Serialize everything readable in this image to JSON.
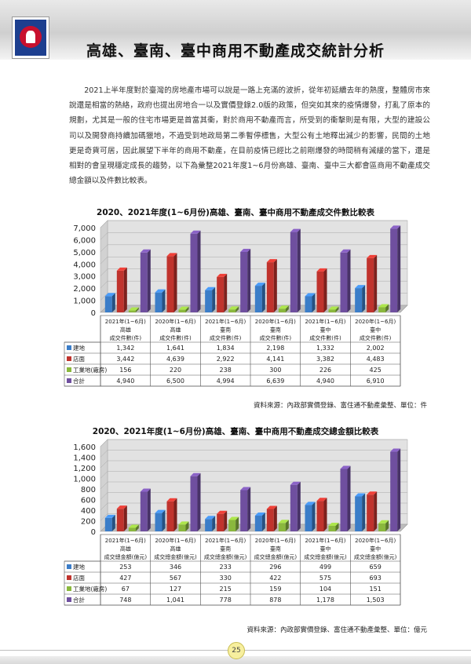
{
  "page": {
    "title": "高雄、臺南、臺中商用不動產成交統計分析",
    "paragraph": "2021上半年度對於臺灣的房地產市場可以說是一路上充滿的波折，從年初延續去年的熱度，整體房市來說還是相當的熱絡，政府也提出房地合一以及實價登錄2.0版的政策，但突如其來的疫情爆發，打亂了原本的規劃，尤其是一般的住宅市場更是首當其衝，對於商用不動產而言，所受到的衝擊則是有限，大型的建設公司以及開發商持續加碼獵地，不過受到地政局第二季暫停標售，大型公有土地釋出減少的影響，民間的土地更是奇貨可居，因此展望下半年的商用不動產，在目前疫情已經比之前剛爆發的時間稍有減緩的當下，還是相對的會呈現穩定成長的趨勢，以下為彙整2021年度1~6月份高雄、臺南、臺中三大都會區商用不動產成交總金額以及件數比較表。",
    "page_number": "25"
  },
  "chart_data": [
    {
      "type": "bar",
      "title": "2020、2021年度(1~6月份)高雄、臺南、臺中商用不動產成交件數比較表",
      "categories": [
        [
          "2021年(1~6月)",
          "高雄",
          "成交件數(件)"
        ],
        [
          "2020年(1~6月)",
          "高雄",
          "成交件數(件)"
        ],
        [
          "2021年(1~6月)",
          "臺南",
          "成交件數(件)"
        ],
        [
          "2020年(1~6月)",
          "臺南",
          "成交件數(件)"
        ],
        [
          "2021年(1~6月)",
          "臺中",
          "成交件數(件)"
        ],
        [
          "2020年(1~6月)",
          "臺中",
          "成交件數(件)"
        ]
      ],
      "series": [
        {
          "name": "建地",
          "color": "#3b7dc8",
          "values": [
            1342,
            1641,
            1834,
            2198,
            1332,
            2002
          ],
          "labels": [
            "1,342",
            "1,641",
            "1,834",
            "2,198",
            "1,332",
            "2,002"
          ]
        },
        {
          "name": "店面",
          "color": "#c0332d",
          "values": [
            3442,
            4639,
            2922,
            4141,
            3382,
            4483
          ],
          "labels": [
            "3,442",
            "4,639",
            "2,922",
            "4,141",
            "3,382",
            "4,483"
          ]
        },
        {
          "name": "工業地(廠房)",
          "color": "#8ab83d",
          "values": [
            156,
            220,
            238,
            300,
            226,
            425
          ],
          "labels": [
            "156",
            "220",
            "238",
            "300",
            "226",
            "425"
          ]
        },
        {
          "name": "合計",
          "color": "#6f4f9f",
          "values": [
            4940,
            6500,
            4994,
            6639,
            4940,
            6910
          ],
          "labels": [
            "4,940",
            "6,500",
            "4,994",
            "6,639",
            "4,940",
            "6,910"
          ]
        }
      ],
      "yticks": [
        "0",
        "1,000",
        "2,000",
        "3,000",
        "4,000",
        "5,000",
        "6,000",
        "7,000"
      ],
      "ylim": [
        0,
        7000
      ],
      "source": "資料來源：內政部實價登錄、富住通不動產彙整、單位：件"
    },
    {
      "type": "bar",
      "title": "2020、2021年度(1~6月份)高雄、臺南、臺中商用不動產成交總金額比較表",
      "categories": [
        [
          "2021年(1~6月)",
          "高雄",
          "成交總金額(億元)"
        ],
        [
          "2020年(1~6月)",
          "高雄",
          "成交總金額(億元)"
        ],
        [
          "2021年(1~6月)",
          "臺南",
          "成交總金額(億元)"
        ],
        [
          "2020年(1~6月)",
          "臺南",
          "成交總金額(億元)"
        ],
        [
          "2021年(1~6月)",
          "臺中",
          "成交總金額(億元)"
        ],
        [
          "2020年(1~6月)",
          "臺中",
          "成交總金額(億元)"
        ]
      ],
      "series": [
        {
          "name": "建地",
          "color": "#3b7dc8",
          "values": [
            253,
            346,
            233,
            296,
            499,
            659
          ],
          "labels": [
            "253",
            "346",
            "233",
            "296",
            "499",
            "659"
          ]
        },
        {
          "name": "店面",
          "color": "#c0332d",
          "values": [
            427,
            567,
            330,
            422,
            575,
            693
          ],
          "labels": [
            "427",
            "567",
            "330",
            "422",
            "575",
            "693"
          ]
        },
        {
          "name": "工業地(廠房)",
          "color": "#8ab83d",
          "values": [
            67,
            127,
            215,
            159,
            104,
            151
          ],
          "labels": [
            "67",
            "127",
            "215",
            "159",
            "104",
            "151"
          ]
        },
        {
          "name": "合計",
          "color": "#6f4f9f",
          "values": [
            748,
            1041,
            778,
            878,
            1178,
            1503
          ],
          "labels": [
            "748",
            "1,041",
            "778",
            "878",
            "1,178",
            "1,503"
          ]
        }
      ],
      "yticks": [
        "0",
        "200",
        "400",
        "600",
        "800",
        "1,000",
        "1,200",
        "1,400",
        "1,600"
      ],
      "ylim": [
        0,
        1600
      ],
      "source": "資料來源：內政部實價登錄、富住通不動產彙整、單位：億元"
    }
  ]
}
